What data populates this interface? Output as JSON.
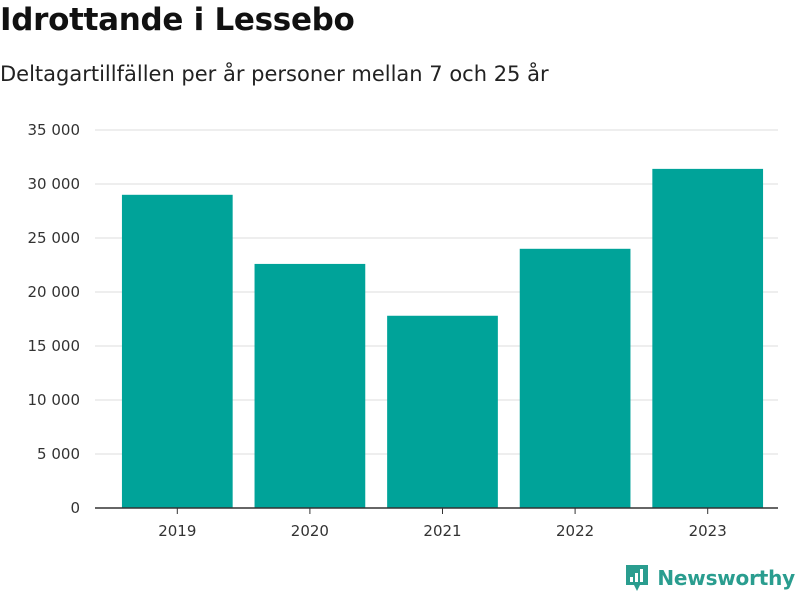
{
  "header": {
    "title": "Idrottande i Lessebo",
    "subtitle": "Deltagartillfällen per år personer mellan 7 och 25 år"
  },
  "brand": {
    "name": "Newsworthy",
    "icon": "newsworthy-logo-icon",
    "color": "#2a9d8f"
  },
  "chart_data": {
    "type": "bar",
    "title": "Idrottande i Lessebo",
    "subtitle": "Deltagartillfällen per år personer mellan 7 och 25 år",
    "xlabel": "",
    "ylabel": "",
    "categories": [
      "2019",
      "2020",
      "2021",
      "2022",
      "2023"
    ],
    "values": [
      29000,
      22600,
      17800,
      24000,
      31400
    ],
    "ylim": [
      0,
      35000
    ],
    "yticks": [
      0,
      5000,
      10000,
      15000,
      20000,
      25000,
      30000,
      35000
    ],
    "ytick_labels": [
      "0",
      "5 000",
      "10 000",
      "15 000",
      "20 000",
      "25 000",
      "30 000",
      "35 000"
    ],
    "grid": true,
    "bar_color": "#00a399"
  }
}
